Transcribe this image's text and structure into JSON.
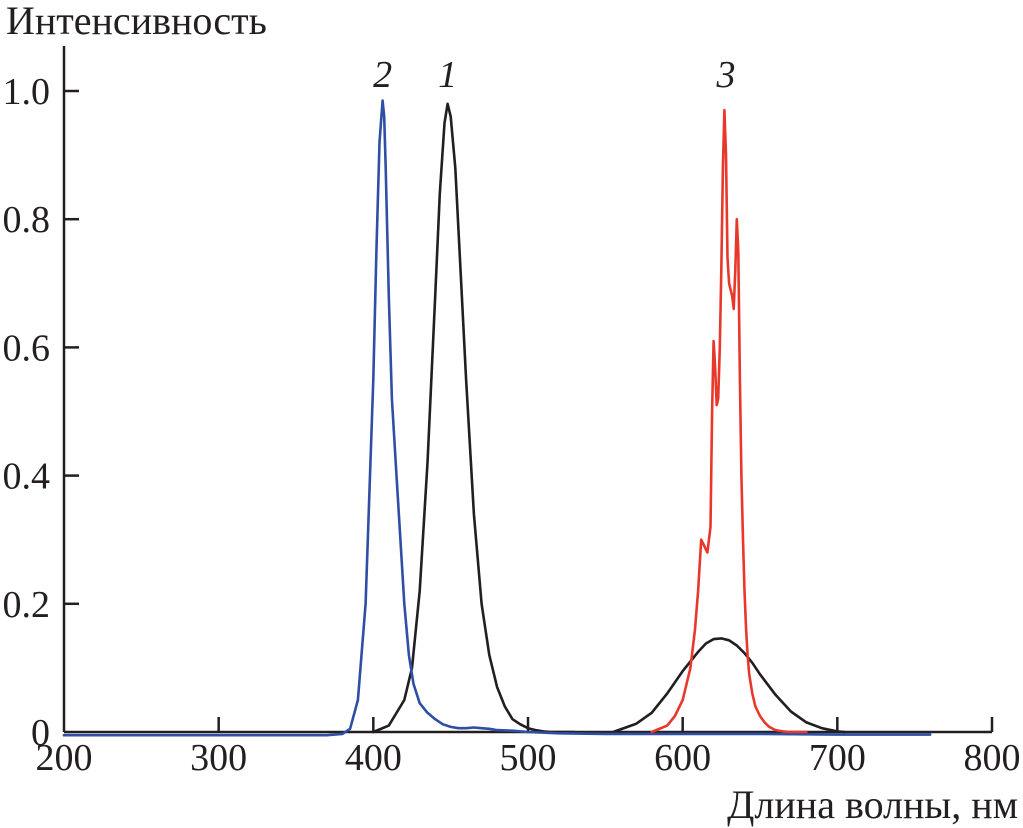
{
  "chart_data": {
    "type": "line",
    "ylabel": "Интенсивность",
    "xlabel": "Длина волны, нм",
    "xlim": [
      200,
      800
    ],
    "ylim": [
      0,
      1.05
    ],
    "grid": false,
    "x_ticks": [
      {
        "value": 200,
        "label": "200"
      },
      {
        "value": 300,
        "label": "300"
      },
      {
        "value": 400,
        "label": "400"
      },
      {
        "value": 500,
        "label": "500"
      },
      {
        "value": 600,
        "label": "600"
      },
      {
        "value": 700,
        "label": "700"
      },
      {
        "value": 800,
        "label": "800"
      }
    ],
    "y_ticks": [
      {
        "value": 0,
        "label": "0"
      },
      {
        "value": 0.2,
        "label": "0.2"
      },
      {
        "value": 0.4,
        "label": "0.4"
      },
      {
        "value": 0.6,
        "label": "0.6"
      },
      {
        "value": 0.8,
        "label": "0.8"
      },
      {
        "value": 1.0,
        "label": "1.0"
      }
    ],
    "series": [
      {
        "name": "1",
        "color": "#231f20",
        "x": [
          400,
          410,
          420,
          425,
          430,
          435,
          440,
          443,
          446,
          448,
          450,
          453,
          456,
          460,
          465,
          470,
          475,
          480,
          485,
          490,
          495,
          500,
          505,
          510,
          515,
          520,
          530
        ],
        "y": [
          0.0,
          0.01,
          0.05,
          0.1,
          0.22,
          0.42,
          0.68,
          0.84,
          0.95,
          0.98,
          0.96,
          0.88,
          0.74,
          0.55,
          0.34,
          0.2,
          0.12,
          0.07,
          0.04,
          0.02,
          0.012,
          0.006,
          0.003,
          0.001,
          0.0,
          0.0,
          0.0
        ]
      },
      {
        "name": "1",
        "color": "#231f20",
        "x": [
          555,
          570,
          580,
          590,
          600,
          605,
          610,
          615,
          620,
          625,
          630,
          635,
          640,
          645,
          650,
          660,
          670,
          680,
          690,
          700,
          705
        ],
        "y": [
          0.0,
          0.013,
          0.03,
          0.06,
          0.095,
          0.11,
          0.125,
          0.138,
          0.145,
          0.146,
          0.143,
          0.135,
          0.123,
          0.108,
          0.09,
          0.058,
          0.032,
          0.015,
          0.006,
          0.001,
          0.0
        ]
      },
      {
        "name": "2",
        "color": "#2e4fa3",
        "x": [
          200,
          300,
          370,
          380,
          385,
          390,
          395,
          400,
          402,
          404,
          406,
          407,
          408,
          410,
          412,
          415,
          418,
          420,
          423,
          426,
          430,
          435,
          440,
          445,
          450,
          455,
          460,
          465,
          470,
          475,
          480,
          490,
          500,
          520,
          550,
          600,
          650,
          700,
          760
        ],
        "y": [
          -0.005,
          -0.005,
          -0.005,
          -0.003,
          0.005,
          0.05,
          0.2,
          0.55,
          0.75,
          0.92,
          0.985,
          0.96,
          0.88,
          0.68,
          0.52,
          0.4,
          0.28,
          0.2,
          0.12,
          0.075,
          0.045,
          0.03,
          0.02,
          0.012,
          0.008,
          0.006,
          0.006,
          0.007,
          0.006,
          0.005,
          0.003,
          0.002,
          0.0,
          -0.002,
          -0.003,
          -0.003,
          -0.003,
          -0.004,
          -0.004
        ]
      },
      {
        "name": "3",
        "color": "#e8382b",
        "x": [
          580,
          590,
          595,
          600,
          605,
          608,
          610,
          612,
          614,
          616,
          618,
          619,
          620,
          621,
          622,
          623,
          624,
          625,
          626,
          627,
          628,
          629,
          630,
          631,
          632,
          633,
          634,
          635,
          636,
          637,
          638,
          639,
          640,
          641,
          642,
          643,
          645,
          647,
          650,
          653,
          656,
          660,
          665,
          670,
          680
        ],
        "y": [
          0.0,
          0.01,
          0.025,
          0.05,
          0.1,
          0.16,
          0.22,
          0.3,
          0.29,
          0.28,
          0.32,
          0.5,
          0.61,
          0.57,
          0.51,
          0.52,
          0.6,
          0.72,
          0.88,
          0.97,
          0.9,
          0.74,
          0.7,
          0.69,
          0.68,
          0.66,
          0.72,
          0.8,
          0.75,
          0.55,
          0.4,
          0.3,
          0.22,
          0.16,
          0.12,
          0.09,
          0.06,
          0.04,
          0.025,
          0.015,
          0.008,
          0.003,
          0.001,
          0.0,
          0.0
        ]
      }
    ],
    "annotations": [
      {
        "text": "2",
        "x": 406,
        "y": 1.0
      },
      {
        "text": "1",
        "x": 448,
        "y": 1.0
      },
      {
        "text": "3",
        "x": 628,
        "y": 1.0
      }
    ]
  }
}
